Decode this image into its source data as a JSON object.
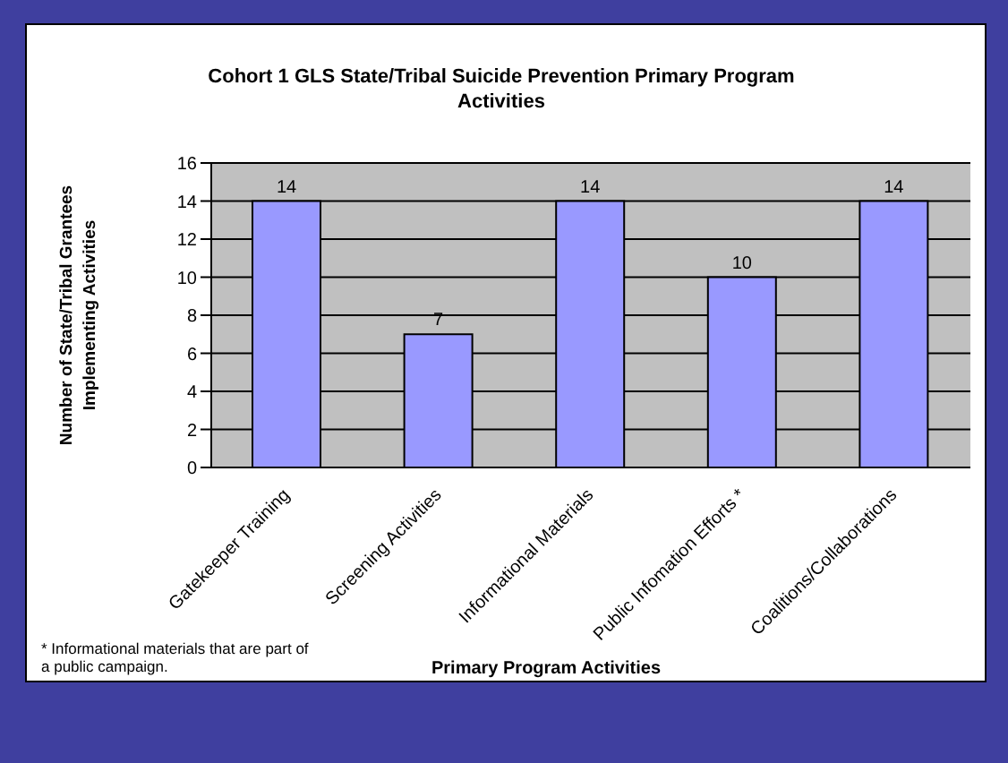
{
  "chart_data": {
    "type": "bar",
    "title": "Cohort 1 GLS State/Tribal Suicide Prevention Primary Program Activities",
    "xlabel": "Primary Program Activities",
    "ylabel": "Number of State/Tribal Grantees Implementing Activities",
    "categories": [
      "Gatekeeper Training",
      "Screening Activities",
      "Informational Materials",
      "Public Infomation Efforts *",
      "Coalitions/Collaborations"
    ],
    "values": [
      14,
      7,
      14,
      10,
      14
    ],
    "color": "#9999ff",
    "ylim": [
      0,
      16
    ],
    "yticks": [
      0,
      2,
      4,
      6,
      8,
      10,
      12,
      14,
      16
    ],
    "grid": "y",
    "data_labels": true,
    "annotations": [
      "* Informational materials that are part of a public campaign."
    ]
  }
}
